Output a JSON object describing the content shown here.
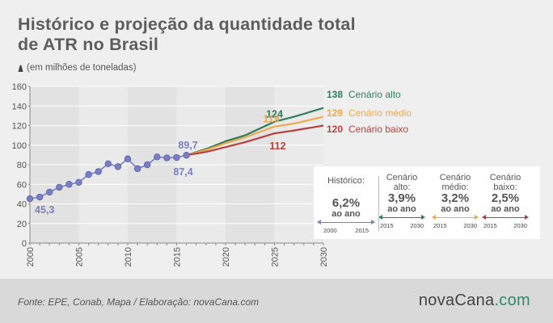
{
  "title": "Histórico e projeção da quantidade total de ATR no Brasil",
  "unit_note": "(em milhões de toneladas)",
  "footer": {
    "source": "Fonte:  EPE, Conab, Mapa / Elaboração: novaCana.com",
    "logo_main": "novaCana",
    "logo_suffix": ".com"
  },
  "colors": {
    "historic": "#7a7fc4",
    "alto": "#2e7d5e",
    "medio": "#f0a94a",
    "baixo": "#b5403f"
  },
  "chart_data": {
    "type": "line",
    "xlim": [
      2000,
      2030
    ],
    "ylim": [
      0,
      160
    ],
    "y_ticks": [
      0,
      20,
      40,
      60,
      80,
      100,
      120,
      140,
      160
    ],
    "x_ticks": [
      2000,
      2005,
      2010,
      2015,
      2020,
      2025,
      2030
    ],
    "grid": true,
    "historic": {
      "x": [
        2000,
        2001,
        2002,
        2003,
        2004,
        2005,
        2006,
        2007,
        2008,
        2009,
        2010,
        2011,
        2012,
        2013,
        2014,
        2015,
        2016
      ],
      "y": [
        45.3,
        47,
        52,
        57,
        60,
        62,
        70,
        73,
        81,
        78,
        86,
        76,
        80,
        88,
        87,
        87.4,
        89.7
      ]
    },
    "series": [
      {
        "name": "Cenário alto",
        "x": [
          2016,
          2018,
          2020,
          2022,
          2025,
          2027,
          2030
        ],
        "y": [
          89.7,
          96,
          104,
          110,
          124,
          129,
          138
        ]
      },
      {
        "name": "Cenário médio",
        "x": [
          2016,
          2018,
          2020,
          2022,
          2025,
          2027,
          2030
        ],
        "y": [
          89.7,
          95,
          102,
          108,
          119,
          122,
          129
        ]
      },
      {
        "name": "Cenário baixo",
        "x": [
          2016,
          2018,
          2020,
          2022,
          2025,
          2027,
          2030
        ],
        "y": [
          89.7,
          93,
          98,
          103,
          112,
          115,
          120
        ]
      }
    ],
    "annotations": [
      {
        "text": "45,3",
        "x": 2000.5,
        "y": 45.3
      },
      {
        "text": "89,7",
        "x": 2016,
        "y": 89.7
      },
      {
        "text": "87,4",
        "x": 2015,
        "y": 87.4
      },
      {
        "text": "124",
        "x": 2025,
        "y": 124
      },
      {
        "text": "119",
        "x": 2025,
        "y": 119
      },
      {
        "text": "112",
        "x": 2025,
        "y": 112
      }
    ],
    "end_labels": [
      {
        "value": "138",
        "name": "Cenário alto"
      },
      {
        "value": "129",
        "name": "Cenário médio"
      },
      {
        "value": "120",
        "name": "Cenário baixo"
      }
    ]
  },
  "stats": [
    {
      "label": "Histórico:",
      "pct": "6,2%",
      "unit": "ao ano",
      "from": "2000",
      "to": "2015",
      "color_key": "historic"
    },
    {
      "label": "Cenário\nalto:",
      "pct": "3,9%",
      "unit": "ao ano",
      "from": "2015",
      "to": "2030",
      "color_key": "alto"
    },
    {
      "label": "Cenário\nmédio:",
      "pct": "3,2%",
      "unit": "ao ano",
      "from": "2015",
      "to": "2030",
      "color_key": "medio"
    },
    {
      "label": "Cenário\nbaixo:",
      "pct": "2,5%",
      "unit": "ao ano",
      "from": "2015",
      "to": "2030",
      "color_key": "baixo"
    }
  ]
}
